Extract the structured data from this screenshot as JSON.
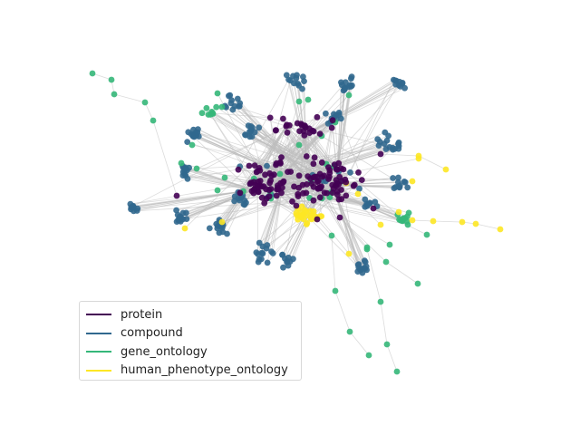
{
  "legend": {
    "items": [
      {
        "label": "protein",
        "color": "#440154"
      },
      {
        "label": "compound",
        "color": "#31688e"
      },
      {
        "label": "gene_ontology",
        "color": "#35b779"
      },
      {
        "label": "human_phenotype_ontology",
        "color": "#fde725"
      }
    ]
  },
  "colors": {
    "edge": "#bdbdbd",
    "protein": "#440154",
    "compound": "#31688e",
    "gene_ontology": "#35b779",
    "human_phenotype_ontology": "#fde725"
  }
}
